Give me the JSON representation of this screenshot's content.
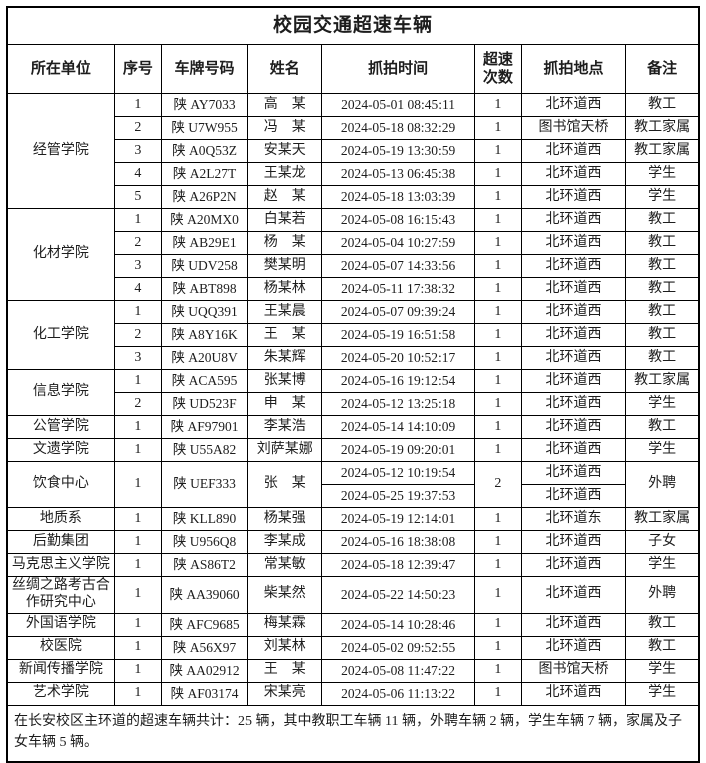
{
  "title": "校园交通超速车辆",
  "columns": [
    "所在单位",
    "序号",
    "车牌号码",
    "姓名",
    "抓拍时间",
    "超速次数",
    "抓拍地点",
    "备注"
  ],
  "groups": [
    {
      "unit": "经管学院",
      "entries": [
        {
          "no": "1",
          "plate": "陕 AY7033",
          "name": "高　某",
          "times": [
            "2024-05-01 08:45:11"
          ],
          "count": "1",
          "locations": [
            "北环道西"
          ],
          "remark": "教工"
        },
        {
          "no": "2",
          "plate": "陕 U7W955",
          "name": "冯　某",
          "times": [
            "2024-05-18 08:32:29"
          ],
          "count": "1",
          "locations": [
            "图书馆天桥"
          ],
          "remark": "教工家属"
        },
        {
          "no": "3",
          "plate": "陕 A0Q53Z",
          "name": "安某天",
          "times": [
            "2024-05-19 13:30:59"
          ],
          "count": "1",
          "locations": [
            "北环道西"
          ],
          "remark": "教工家属"
        },
        {
          "no": "4",
          "plate": "陕 A2L27T",
          "name": "王某龙",
          "times": [
            "2024-05-13 06:45:38"
          ],
          "count": "1",
          "locations": [
            "北环道西"
          ],
          "remark": "学生"
        },
        {
          "no": "5",
          "plate": "陕 A26P2N",
          "name": "赵　某",
          "times": [
            "2024-05-18 13:03:39"
          ],
          "count": "1",
          "locations": [
            "北环道西"
          ],
          "remark": "学生"
        }
      ]
    },
    {
      "unit": "化材学院",
      "entries": [
        {
          "no": "1",
          "plate": "陕 A20MX0",
          "name": "白某若",
          "times": [
            "2024-05-08 16:15:43"
          ],
          "count": "1",
          "locations": [
            "北环道西"
          ],
          "remark": "教工"
        },
        {
          "no": "2",
          "plate": "陕 AB29E1",
          "name": "杨　某",
          "times": [
            "2024-05-04 10:27:59"
          ],
          "count": "1",
          "locations": [
            "北环道西"
          ],
          "remark": "教工"
        },
        {
          "no": "3",
          "plate": "陕 UDV258",
          "name": "樊某明",
          "times": [
            "2024-05-07 14:33:56"
          ],
          "count": "1",
          "locations": [
            "北环道西"
          ],
          "remark": "教工"
        },
        {
          "no": "4",
          "plate": "陕 ABT898",
          "name": "杨某林",
          "times": [
            "2024-05-11 17:38:32"
          ],
          "count": "1",
          "locations": [
            "北环道西"
          ],
          "remark": "教工"
        }
      ]
    },
    {
      "unit": "化工学院",
      "entries": [
        {
          "no": "1",
          "plate": "陕 UQQ391",
          "name": "王某晨",
          "times": [
            "2024-05-07 09:39:24"
          ],
          "count": "1",
          "locations": [
            "北环道西"
          ],
          "remark": "教工"
        },
        {
          "no": "2",
          "plate": "陕 A8Y16K",
          "name": "王　某",
          "times": [
            "2024-05-19 16:51:58"
          ],
          "count": "1",
          "locations": [
            "北环道西"
          ],
          "remark": "教工"
        },
        {
          "no": "3",
          "plate": "陕 A20U8V",
          "name": "朱某辉",
          "times": [
            "2024-05-20 10:52:17"
          ],
          "count": "1",
          "locations": [
            "北环道西"
          ],
          "remark": "教工"
        }
      ]
    },
    {
      "unit": "信息学院",
      "entries": [
        {
          "no": "1",
          "plate": "陕 ACA595",
          "name": "张某博",
          "times": [
            "2024-05-16 19:12:54"
          ],
          "count": "1",
          "locations": [
            "北环道西"
          ],
          "remark": "教工家属"
        },
        {
          "no": "2",
          "plate": "陕 UD523F",
          "name": "申　某",
          "times": [
            "2024-05-12 13:25:18"
          ],
          "count": "1",
          "locations": [
            "北环道西"
          ],
          "remark": "学生"
        }
      ]
    },
    {
      "unit": "公管学院",
      "entries": [
        {
          "no": "1",
          "plate": "陕 AF97901",
          "name": "李某浩",
          "times": [
            "2024-05-14 14:10:09"
          ],
          "count": "1",
          "locations": [
            "北环道西"
          ],
          "remark": "教工"
        }
      ]
    },
    {
      "unit": "文遗学院",
      "entries": [
        {
          "no": "1",
          "plate": "陕 U55A82",
          "name": "刘萨某娜",
          "times": [
            "2024-05-19 09:20:01"
          ],
          "count": "1",
          "locations": [
            "北环道西"
          ],
          "remark": "学生"
        }
      ]
    },
    {
      "unit": "饮食中心",
      "entries": [
        {
          "no": "1",
          "plate": "陕 UEF333",
          "name": "张　某",
          "times": [
            "2024-05-12 10:19:54",
            "2024-05-25 19:37:53"
          ],
          "count": "2",
          "locations": [
            "北环道西",
            "北环道西"
          ],
          "remark": "外聘"
        }
      ]
    },
    {
      "unit": "地质系",
      "entries": [
        {
          "no": "1",
          "plate": "陕 KLL890",
          "name": "杨某强",
          "times": [
            "2024-05-19 12:14:01"
          ],
          "count": "1",
          "locations": [
            "北环道东"
          ],
          "remark": "教工家属"
        }
      ]
    },
    {
      "unit": "后勤集团",
      "entries": [
        {
          "no": "1",
          "plate": "陕 U956Q8",
          "name": "李某成",
          "times": [
            "2024-05-16 18:38:08"
          ],
          "count": "1",
          "locations": [
            "北环道西"
          ],
          "remark": "子女"
        }
      ]
    },
    {
      "unit": "马克思主义学院",
      "entries": [
        {
          "no": "1",
          "plate": "陕 AS86T2",
          "name": "常某敏",
          "times": [
            "2024-05-18 12:39:47"
          ],
          "count": "1",
          "locations": [
            "北环道西"
          ],
          "remark": "学生"
        }
      ]
    },
    {
      "unit": "丝绸之路考古合作研究中心",
      "entries": [
        {
          "no": "1",
          "plate": "陕 AA39060",
          "name": "柴某然",
          "times": [
            "2024-05-22 14:50:23"
          ],
          "count": "1",
          "locations": [
            "北环道西"
          ],
          "remark": "外聘"
        }
      ]
    },
    {
      "unit": "外国语学院",
      "entries": [
        {
          "no": "1",
          "plate": "陕 AFC9685",
          "name": "梅某霖",
          "times": [
            "2024-05-14 10:28:46"
          ],
          "count": "1",
          "locations": [
            "北环道西"
          ],
          "remark": "教工"
        }
      ]
    },
    {
      "unit": "校医院",
      "entries": [
        {
          "no": "1",
          "plate": "陕 A56X97",
          "name": "刘某林",
          "times": [
            "2024-05-02 09:52:55"
          ],
          "count": "1",
          "locations": [
            "北环道西"
          ],
          "remark": "教工"
        }
      ]
    },
    {
      "unit": "新闻传播学院",
      "entries": [
        {
          "no": "1",
          "plate": "陕 AA02912",
          "name": "王　某",
          "times": [
            "2024-05-08 11:47:22"
          ],
          "count": "1",
          "locations": [
            "图书馆天桥"
          ],
          "remark": "学生"
        }
      ]
    },
    {
      "unit": "艺术学院",
      "entries": [
        {
          "no": "1",
          "plate": "陕 AF03174",
          "name": "宋某亮",
          "times": [
            "2024-05-06 11:13:22"
          ],
          "count": "1",
          "locations": [
            "北环道西"
          ],
          "remark": "学生"
        }
      ]
    }
  ],
  "footer": "在长安校区主环道的超速车辆共计：25 辆，其中教职工车辆 11 辆，外聘车辆 2 辆，学生车辆 7 辆，家属及子女车辆 5 辆。",
  "colors": {
    "border": "#000000",
    "text": "#1d1d1d",
    "background": "#ffffff"
  }
}
